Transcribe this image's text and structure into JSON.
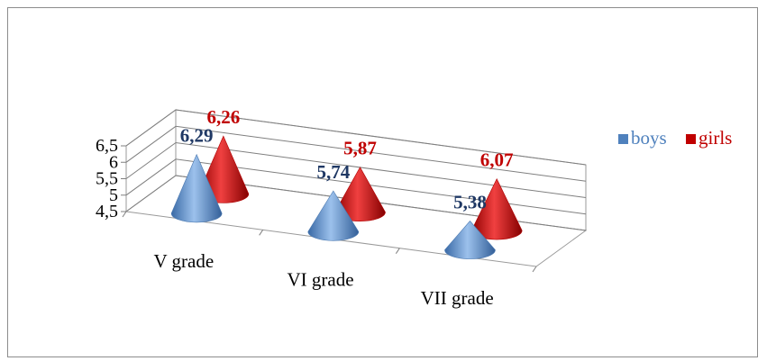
{
  "chart_data": {
    "type": "bar",
    "style": "3d-cone",
    "categories": [
      "V grade",
      "VI grade",
      "VII grade"
    ],
    "series": [
      {
        "name": "boys",
        "values": [
          6.29,
          5.74,
          5.38
        ],
        "labels": [
          "6,29",
          "5,74",
          "5,38"
        ]
      },
      {
        "name": "girls",
        "values": [
          6.26,
          5.87,
          6.07
        ],
        "labels": [
          "6,26",
          "5,87",
          "6,07"
        ]
      }
    ],
    "ylim": [
      4.5,
      6.5
    ],
    "yticks": [
      {
        "value": 4.5,
        "label": "4,5"
      },
      {
        "value": 5,
        "label": "5"
      },
      {
        "value": 5.5,
        "label": "5,5"
      },
      {
        "value": 6,
        "label": "6"
      },
      {
        "value": 6.5,
        "label": "6,5"
      }
    ],
    "grid": true,
    "legend_position": "right"
  },
  "colors": {
    "boys": "#4f81bd",
    "boys_label": "#1f3864",
    "girls": "#c00000",
    "girls_label": "#c00000",
    "boys_legend_text": "#4f81bd",
    "girls_legend_text": "#c00000"
  }
}
